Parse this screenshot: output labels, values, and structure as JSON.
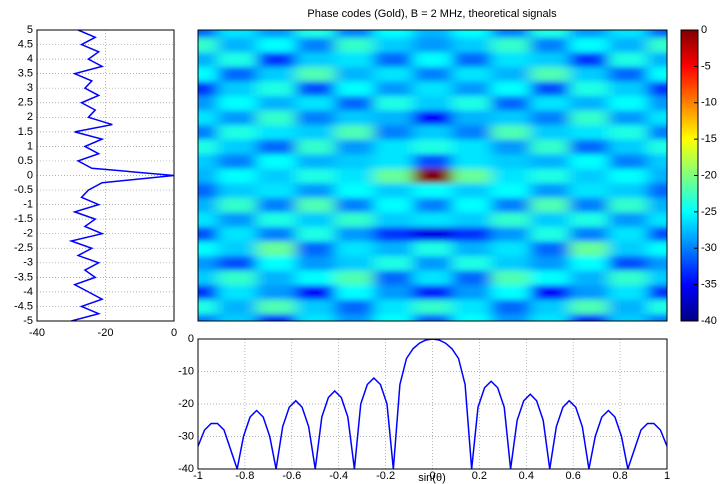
{
  "chart_data": [
    {
      "type": "hline",
      "color": "#0000ff",
      "grid": true,
      "y": [
        -5,
        -4.75,
        -4.5,
        -4.25,
        -4,
        -3.75,
        -3.5,
        -3.25,
        -3,
        -2.75,
        -2.5,
        -2.25,
        -2,
        -1.75,
        -1.5,
        -1.25,
        -1,
        -0.75,
        -0.5,
        -0.25,
        0,
        0.25,
        0.5,
        0.75,
        1,
        1.25,
        1.5,
        1.75,
        2,
        2.25,
        2.5,
        2.75,
        3,
        3.25,
        3.5,
        3.75,
        4,
        4.25,
        4.5,
        4.75,
        5
      ],
      "values": [
        -30,
        -22,
        -27,
        -21,
        -25,
        -29,
        -23,
        -26,
        -22,
        -28,
        -24,
        -30,
        -21,
        -26,
        -23,
        -29,
        -22,
        -27,
        -25,
        -21,
        0,
        -24,
        -28,
        -22,
        -26,
        -21,
        -29,
        -18,
        -25,
        -23,
        -27,
        -22,
        -26,
        -24,
        -29,
        -21,
        -25,
        -22,
        -27,
        -23,
        -28
      ],
      "xlim": [
        -40,
        0
      ],
      "xticks": [
        -40,
        -20,
        0
      ],
      "ylim": [
        -5,
        5
      ],
      "yticks": [
        -5,
        -4.5,
        -4,
        -3.5,
        -3,
        -2.5,
        -2,
        -1.5,
        -1,
        -0.5,
        0,
        0.5,
        1,
        1.5,
        2,
        2.5,
        3,
        3.5,
        4,
        4.5,
        5
      ]
    },
    {
      "type": "heatmap",
      "title": "Phase codes (Gold), B = 2 MHz, theoretical signals",
      "colormap": "jet",
      "clim": [
        -40,
        0
      ],
      "x": [
        -1,
        -0.833,
        -0.667,
        -0.5,
        -0.333,
        -0.167,
        0,
        0.167,
        0.333,
        0.5,
        0.667,
        0.833,
        1
      ],
      "y": [
        -5,
        -4.5,
        -4,
        -3.5,
        -3,
        -2.5,
        -2,
        -1.5,
        -1,
        -0.5,
        0,
        0.5,
        1,
        1.5,
        2,
        2.5,
        3,
        3.5,
        4,
        4.5,
        5
      ],
      "z": [
        [
          -30,
          -27,
          -33,
          -26,
          -29,
          -25,
          -31,
          -25,
          -29,
          -26,
          -33,
          -27,
          -30
        ],
        [
          -24,
          -28,
          -22,
          -27,
          -31,
          -26,
          -23,
          -26,
          -31,
          -27,
          -22,
          -28,
          -24
        ],
        [
          -33,
          -26,
          -29,
          -35,
          -25,
          -29,
          -34,
          -29,
          -25,
          -35,
          -29,
          -26,
          -33
        ],
        [
          -27,
          -23,
          -28,
          -25,
          -22,
          -31,
          -26,
          -31,
          -22,
          -25,
          -28,
          -23,
          -27
        ],
        [
          -29,
          -32,
          -25,
          -29,
          -27,
          -24,
          -29,
          -24,
          -27,
          -29,
          -25,
          -32,
          -29
        ],
        [
          -25,
          -27,
          -21,
          -31,
          -26,
          -28,
          -24,
          -28,
          -26,
          -31,
          -21,
          -27,
          -25
        ],
        [
          -32,
          -26,
          -30,
          -24,
          -29,
          -33,
          -36,
          -33,
          -29,
          -24,
          -30,
          -26,
          -32
        ],
        [
          -26,
          -29,
          -24,
          -27,
          -23,
          -27,
          -26,
          -27,
          -23,
          -27,
          -24,
          -29,
          -26
        ],
        [
          -28,
          -23,
          -30,
          -22,
          -30,
          -25,
          -30,
          -25,
          -30,
          -22,
          -30,
          -23,
          -28
        ],
        [
          -31,
          -27,
          -26,
          -29,
          -25,
          -27,
          -25,
          -27,
          -25,
          -29,
          -26,
          -27,
          -31
        ],
        [
          -28,
          -25,
          -27,
          -24,
          -26,
          -21,
          0,
          -21,
          -26,
          -24,
          -27,
          -25,
          -28
        ],
        [
          -27,
          -30,
          -25,
          -28,
          -27,
          -26,
          -32,
          -26,
          -27,
          -28,
          -25,
          -30,
          -27
        ],
        [
          -24,
          -27,
          -31,
          -23,
          -29,
          -26,
          -24,
          -26,
          -29,
          -23,
          -31,
          -27,
          -24
        ],
        [
          -30,
          -24,
          -26,
          -27,
          -22,
          -30,
          -27,
          -30,
          -22,
          -27,
          -26,
          -24,
          -30
        ],
        [
          -26,
          -29,
          -23,
          -30,
          -27,
          -28,
          -35,
          -28,
          -27,
          -30,
          -23,
          -29,
          -26
        ],
        [
          -29,
          -25,
          -28,
          -26,
          -31,
          -24,
          -27,
          -24,
          -31,
          -26,
          -28,
          -25,
          -29
        ],
        [
          -33,
          -27,
          -24,
          -32,
          -25,
          -29,
          -26,
          -29,
          -25,
          -32,
          -24,
          -27,
          -33
        ],
        [
          -25,
          -31,
          -27,
          -22,
          -28,
          -26,
          -30,
          -26,
          -28,
          -22,
          -27,
          -31,
          -25
        ],
        [
          -28,
          -24,
          -33,
          -27,
          -26,
          -31,
          -25,
          -31,
          -26,
          -27,
          -33,
          -24,
          -28
        ],
        [
          -23,
          -28,
          -25,
          -30,
          -23,
          -27,
          -29,
          -27,
          -23,
          -30,
          -25,
          -28,
          -23
        ],
        [
          -31,
          -26,
          -29,
          -24,
          -30,
          -25,
          -28,
          -25,
          -30,
          -24,
          -29,
          -26,
          -31
        ]
      ]
    },
    {
      "type": "colorbar",
      "yticks": [
        0,
        -5,
        -10,
        -15,
        -20,
        -25,
        -30,
        -35,
        -40
      ]
    },
    {
      "type": "line",
      "xlabel": "sin(θ)",
      "color": "#0000ff",
      "grid": true,
      "x": [
        -1,
        -0.972,
        -0.944,
        -0.917,
        -0.889,
        -0.861,
        -0.833,
        -0.806,
        -0.778,
        -0.75,
        -0.722,
        -0.694,
        -0.667,
        -0.639,
        -0.611,
        -0.583,
        -0.556,
        -0.528,
        -0.5,
        -0.472,
        -0.444,
        -0.417,
        -0.389,
        -0.361,
        -0.333,
        -0.306,
        -0.278,
        -0.25,
        -0.222,
        -0.194,
        -0.167,
        -0.139,
        -0.111,
        -0.083,
        -0.056,
        -0.028,
        0,
        0.028,
        0.056,
        0.083,
        0.111,
        0.139,
        0.167,
        0.194,
        0.222,
        0.25,
        0.278,
        0.306,
        0.333,
        0.361,
        0.389,
        0.417,
        0.444,
        0.472,
        0.5,
        0.528,
        0.556,
        0.583,
        0.611,
        0.639,
        0.667,
        0.694,
        0.722,
        0.75,
        0.778,
        0.806,
        0.833,
        0.861,
        0.889,
        0.917,
        0.944,
        0.972,
        1
      ],
      "values": [
        -33,
        -28,
        -26,
        -26,
        -28,
        -34,
        -40,
        -30,
        -24,
        -22,
        -24,
        -30,
        -40,
        -27,
        -21,
        -19,
        -21,
        -27,
        -40,
        -24,
        -18,
        -16,
        -18,
        -24,
        -40,
        -20,
        -14,
        -12,
        -14,
        -20,
        -40,
        -14,
        -6,
        -3,
        -1.3,
        -0.3,
        0,
        -0.3,
        -1.3,
        -3,
        -6,
        -14,
        -40,
        -21,
        -15,
        -13,
        -15,
        -21,
        -40,
        -25,
        -19,
        -17,
        -19,
        -25,
        -40,
        -27,
        -21,
        -19,
        -21,
        -27,
        -40,
        -30,
        -24,
        -22,
        -24,
        -30,
        -40,
        -34,
        -28,
        -26,
        -26,
        -28,
        -33
      ],
      "xlim": [
        -1,
        1
      ],
      "xticks": [
        -1,
        -0.8,
        -0.6,
        -0.4,
        -0.2,
        0,
        0.2,
        0.4,
        0.6,
        0.8,
        1
      ],
      "ylim": [
        -40,
        0
      ],
      "yticks": [
        0,
        -10,
        -20,
        -30,
        -40
      ]
    }
  ]
}
